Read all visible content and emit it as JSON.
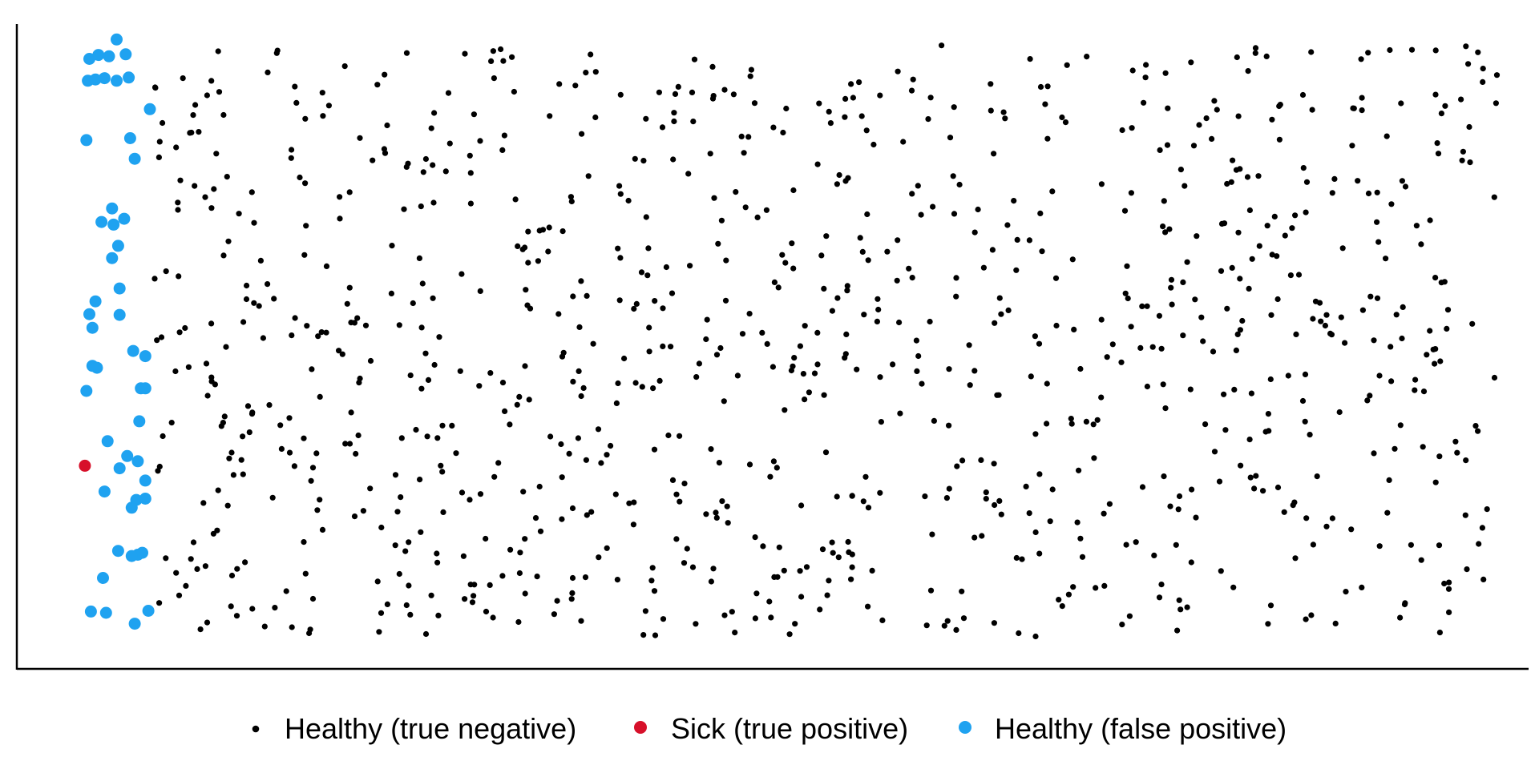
{
  "colors": {
    "healthy_true_negative": "#000000",
    "sick_true_positive": "#d7102a",
    "healthy_false_positive": "#1fa2f0",
    "axis": "#000000",
    "background": "#ffffff"
  },
  "chart_data": {
    "type": "scatter",
    "title": "",
    "xlabel": "",
    "ylabel": "",
    "xlim": [
      0,
      1
    ],
    "ylim": [
      0,
      1
    ],
    "grid": false,
    "axis_ticks": false,
    "legend_position": "bottom",
    "legend": [
      {
        "label": "Healthy (true negative)",
        "series": "healthy_true_negative"
      },
      {
        "label": "Sick (true positive)",
        "series": "sick_true_positive"
      },
      {
        "label": "Healthy (false positive)",
        "series": "healthy_false_positive"
      }
    ],
    "series": [
      {
        "key": "healthy_true_negative",
        "name": "Healthy (true negative)",
        "color": "#000000",
        "marker": "small-dot",
        "count": 980,
        "x_range": [
          0.09,
          0.98
        ],
        "y_range": [
          0.05,
          0.97
        ],
        "seed": 20
      },
      {
        "key": "sick_true_positive",
        "name": "Sick (true positive)",
        "color": "#d7102a",
        "marker": "large-dot",
        "points": [
          [
            0.045,
            0.315
          ]
        ]
      },
      {
        "key": "healthy_false_positive",
        "name": "Healthy (false positive)",
        "color": "#1fa2f0",
        "marker": "large-dot",
        "points": [
          [
            0.066,
            0.976
          ],
          [
            0.048,
            0.946
          ],
          [
            0.054,
            0.952
          ],
          [
            0.061,
            0.95
          ],
          [
            0.072,
            0.953
          ],
          [
            0.047,
            0.912
          ],
          [
            0.052,
            0.914
          ],
          [
            0.058,
            0.916
          ],
          [
            0.066,
            0.912
          ],
          [
            0.074,
            0.917
          ],
          [
            0.088,
            0.868
          ],
          [
            0.046,
            0.82
          ],
          [
            0.075,
            0.823
          ],
          [
            0.078,
            0.791
          ],
          [
            0.063,
            0.714
          ],
          [
            0.071,
            0.698
          ],
          [
            0.056,
            0.693
          ],
          [
            0.064,
            0.689
          ],
          [
            0.067,
            0.656
          ],
          [
            0.063,
            0.637
          ],
          [
            0.068,
            0.59
          ],
          [
            0.052,
            0.57
          ],
          [
            0.048,
            0.55
          ],
          [
            0.068,
            0.549
          ],
          [
            0.05,
            0.529
          ],
          [
            0.077,
            0.493
          ],
          [
            0.085,
            0.485
          ],
          [
            0.05,
            0.47
          ],
          [
            0.053,
            0.467
          ],
          [
            0.082,
            0.435
          ],
          [
            0.085,
            0.435
          ],
          [
            0.046,
            0.431
          ],
          [
            0.081,
            0.384
          ],
          [
            0.06,
            0.353
          ],
          [
            0.073,
            0.33
          ],
          [
            0.08,
            0.322
          ],
          [
            0.068,
            0.311
          ],
          [
            0.085,
            0.292
          ],
          [
            0.058,
            0.275
          ],
          [
            0.079,
            0.262
          ],
          [
            0.085,
            0.264
          ],
          [
            0.076,
            0.25
          ],
          [
            0.067,
            0.183
          ],
          [
            0.083,
            0.18
          ],
          [
            0.08,
            0.177
          ],
          [
            0.076,
            0.175
          ],
          [
            0.057,
            0.141
          ],
          [
            0.049,
            0.089
          ],
          [
            0.059,
            0.087
          ],
          [
            0.087,
            0.09
          ],
          [
            0.078,
            0.07
          ]
        ]
      }
    ]
  }
}
